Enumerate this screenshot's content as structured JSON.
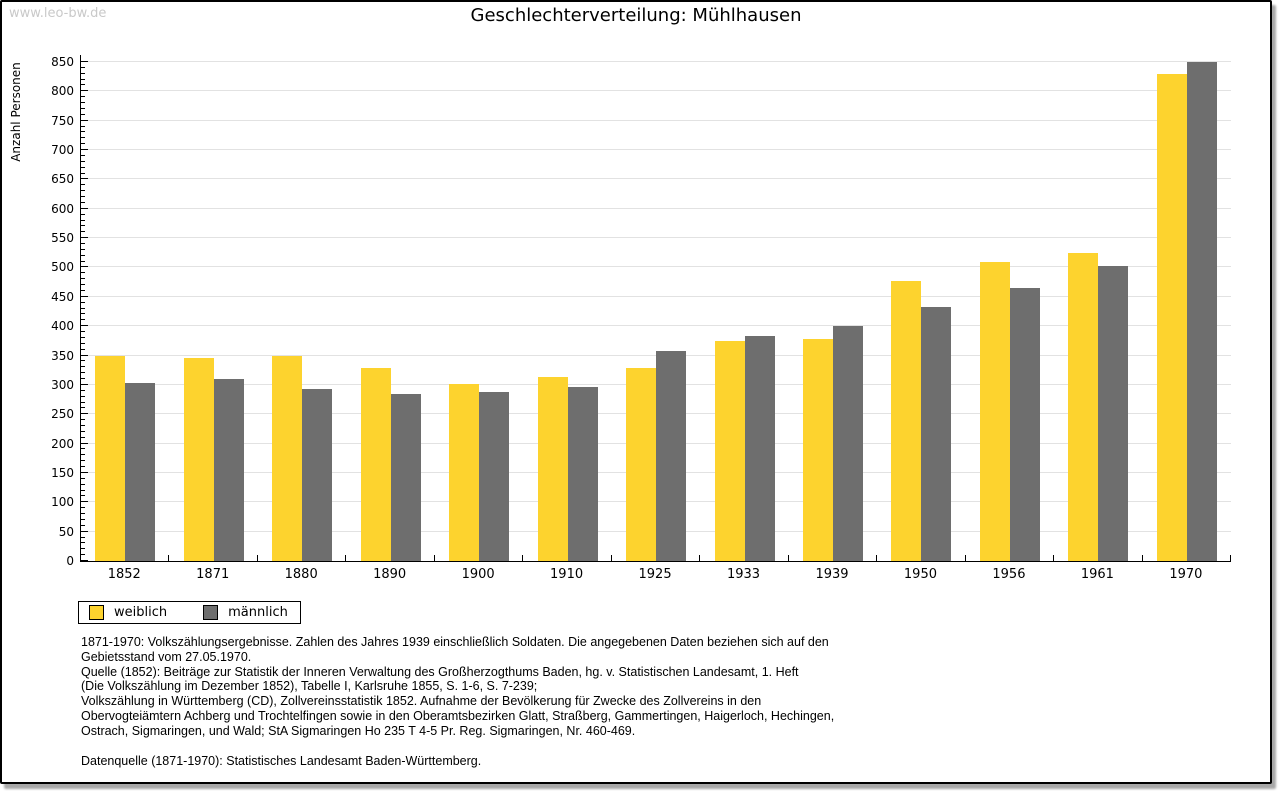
{
  "watermark": "www.leo-bw.de",
  "title": "Geschlechterverteilung: Mühlhausen",
  "chart_data": {
    "type": "bar",
    "title": "Geschlechterverteilung: Mühlhausen",
    "xlabel": "",
    "ylabel": "Anzahl Personen",
    "ylim": [
      0,
      850
    ],
    "ytick_step": 50,
    "minor_tick_step": 10,
    "grid": true,
    "legend_position": "bottom-left",
    "categories": [
      "1852",
      "1871",
      "1880",
      "1890",
      "1900",
      "1910",
      "1925",
      "1933",
      "1939",
      "1950",
      "1956",
      "1961",
      "1970"
    ],
    "series": [
      {
        "name": "weiblich",
        "color": "#fdd32e",
        "values": [
          350,
          345,
          350,
          328,
          301,
          313,
          328,
          374,
          379,
          477,
          510,
          525,
          830
        ]
      },
      {
        "name": "männlich",
        "color": "#6e6e6e",
        "values": [
          303,
          310,
          293,
          285,
          288,
          296,
          357,
          383,
          401,
          433,
          465,
          503,
          850
        ]
      }
    ]
  },
  "footnotes": {
    "lines": [
      "1871-1970: Volkszählungsergebnisse. Zahlen des Jahres 1939 einschließlich Soldaten. Die angegebenen Daten beziehen sich auf den",
      "Gebietsstand vom 27.05.1970.",
      "Quelle (1852): Beiträge zur Statistik der Inneren Verwaltung des Großherzogthums Baden, hg. v. Statistischen Landesamt, 1. Heft",
      "(Die Volkszählung im Dezember 1852), Tabelle I, Karlsruhe 1855, S. 1-6, S. 7-239;",
      "Volkszählung in Württemberg (CD), Zollvereinsstatistik 1852. Aufnahme der Bevölkerung für Zwecke des Zollvereins in den",
      "Obervogteiämtern Achberg und Trochtelfingen sowie in den Oberamtsbezirken Glatt, Straßberg, Gammertingen, Haigerloch, Hechingen,",
      "Ostrach, Sigmaringen, und Wald; StA Sigmaringen Ho 235 T 4-5 Pr. Reg. Sigmaringen, Nr. 460-469."
    ],
    "datasource": "Datenquelle (1871-1970): Statistisches Landesamt Baden-Württemberg."
  },
  "colors": {
    "weiblich": "#fdd32e",
    "maennlich": "#6e6e6e",
    "gridline": "#e2e2e2",
    "watermark": "#c9c9c9",
    "axis": "#000000",
    "frame_shadow": "#a8a8a8",
    "background": "#ffffff"
  }
}
